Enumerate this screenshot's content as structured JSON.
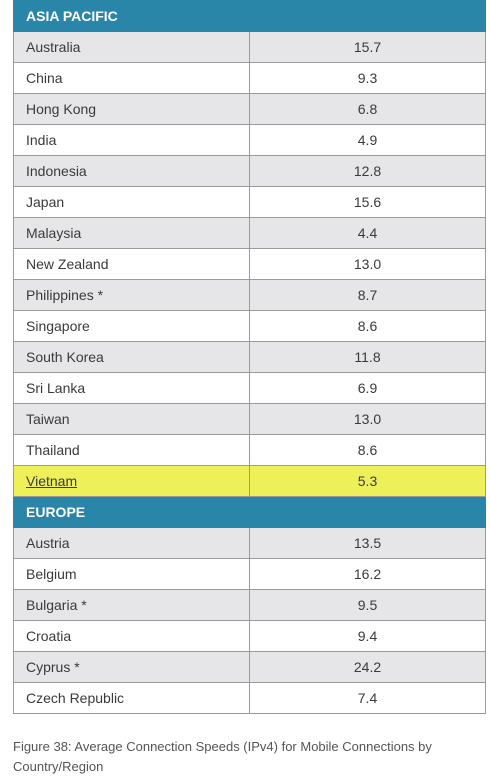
{
  "colors": {
    "section_header": "#2a86a8",
    "row_shade": "#e6e6e8",
    "highlight": "#eef05a"
  },
  "sections": [
    {
      "title": "ASIA PACIFIC",
      "rows": [
        {
          "country": "Australia",
          "speed": "15.7"
        },
        {
          "country": "China",
          "speed": "9.3"
        },
        {
          "country": "Hong Kong",
          "speed": "6.8"
        },
        {
          "country": "India",
          "speed": "4.9"
        },
        {
          "country": "Indonesia",
          "speed": "12.8"
        },
        {
          "country": "Japan",
          "speed": "15.6"
        },
        {
          "country": "Malaysia",
          "speed": "4.4"
        },
        {
          "country": "New Zealand",
          "speed": "13.0"
        },
        {
          "country": "Philippines *",
          "speed": "8.7"
        },
        {
          "country": "Singapore",
          "speed": "8.6"
        },
        {
          "country": "South Korea",
          "speed": "11.8"
        },
        {
          "country": "Sri Lanka",
          "speed": "6.9"
        },
        {
          "country": "Taiwan",
          "speed": "13.0"
        },
        {
          "country": "Thailand",
          "speed": "8.6"
        },
        {
          "country": "Vietnam",
          "speed": "5.3",
          "highlighted": true
        }
      ]
    },
    {
      "title": "EUROPE",
      "rows": [
        {
          "country": "Austria",
          "speed": "13.5"
        },
        {
          "country": "Belgium",
          "speed": "16.2"
        },
        {
          "country": "Bulgaria *",
          "speed": "9.5"
        },
        {
          "country": "Croatia",
          "speed": "9.4"
        },
        {
          "country": "Cyprus *",
          "speed": "24.2"
        },
        {
          "country": "Czech Republic",
          "speed": "7.4"
        }
      ]
    }
  ],
  "caption": "Figure 38: Average Connection Speeds (IPv4) for Mobile Connections by Country/Region"
}
